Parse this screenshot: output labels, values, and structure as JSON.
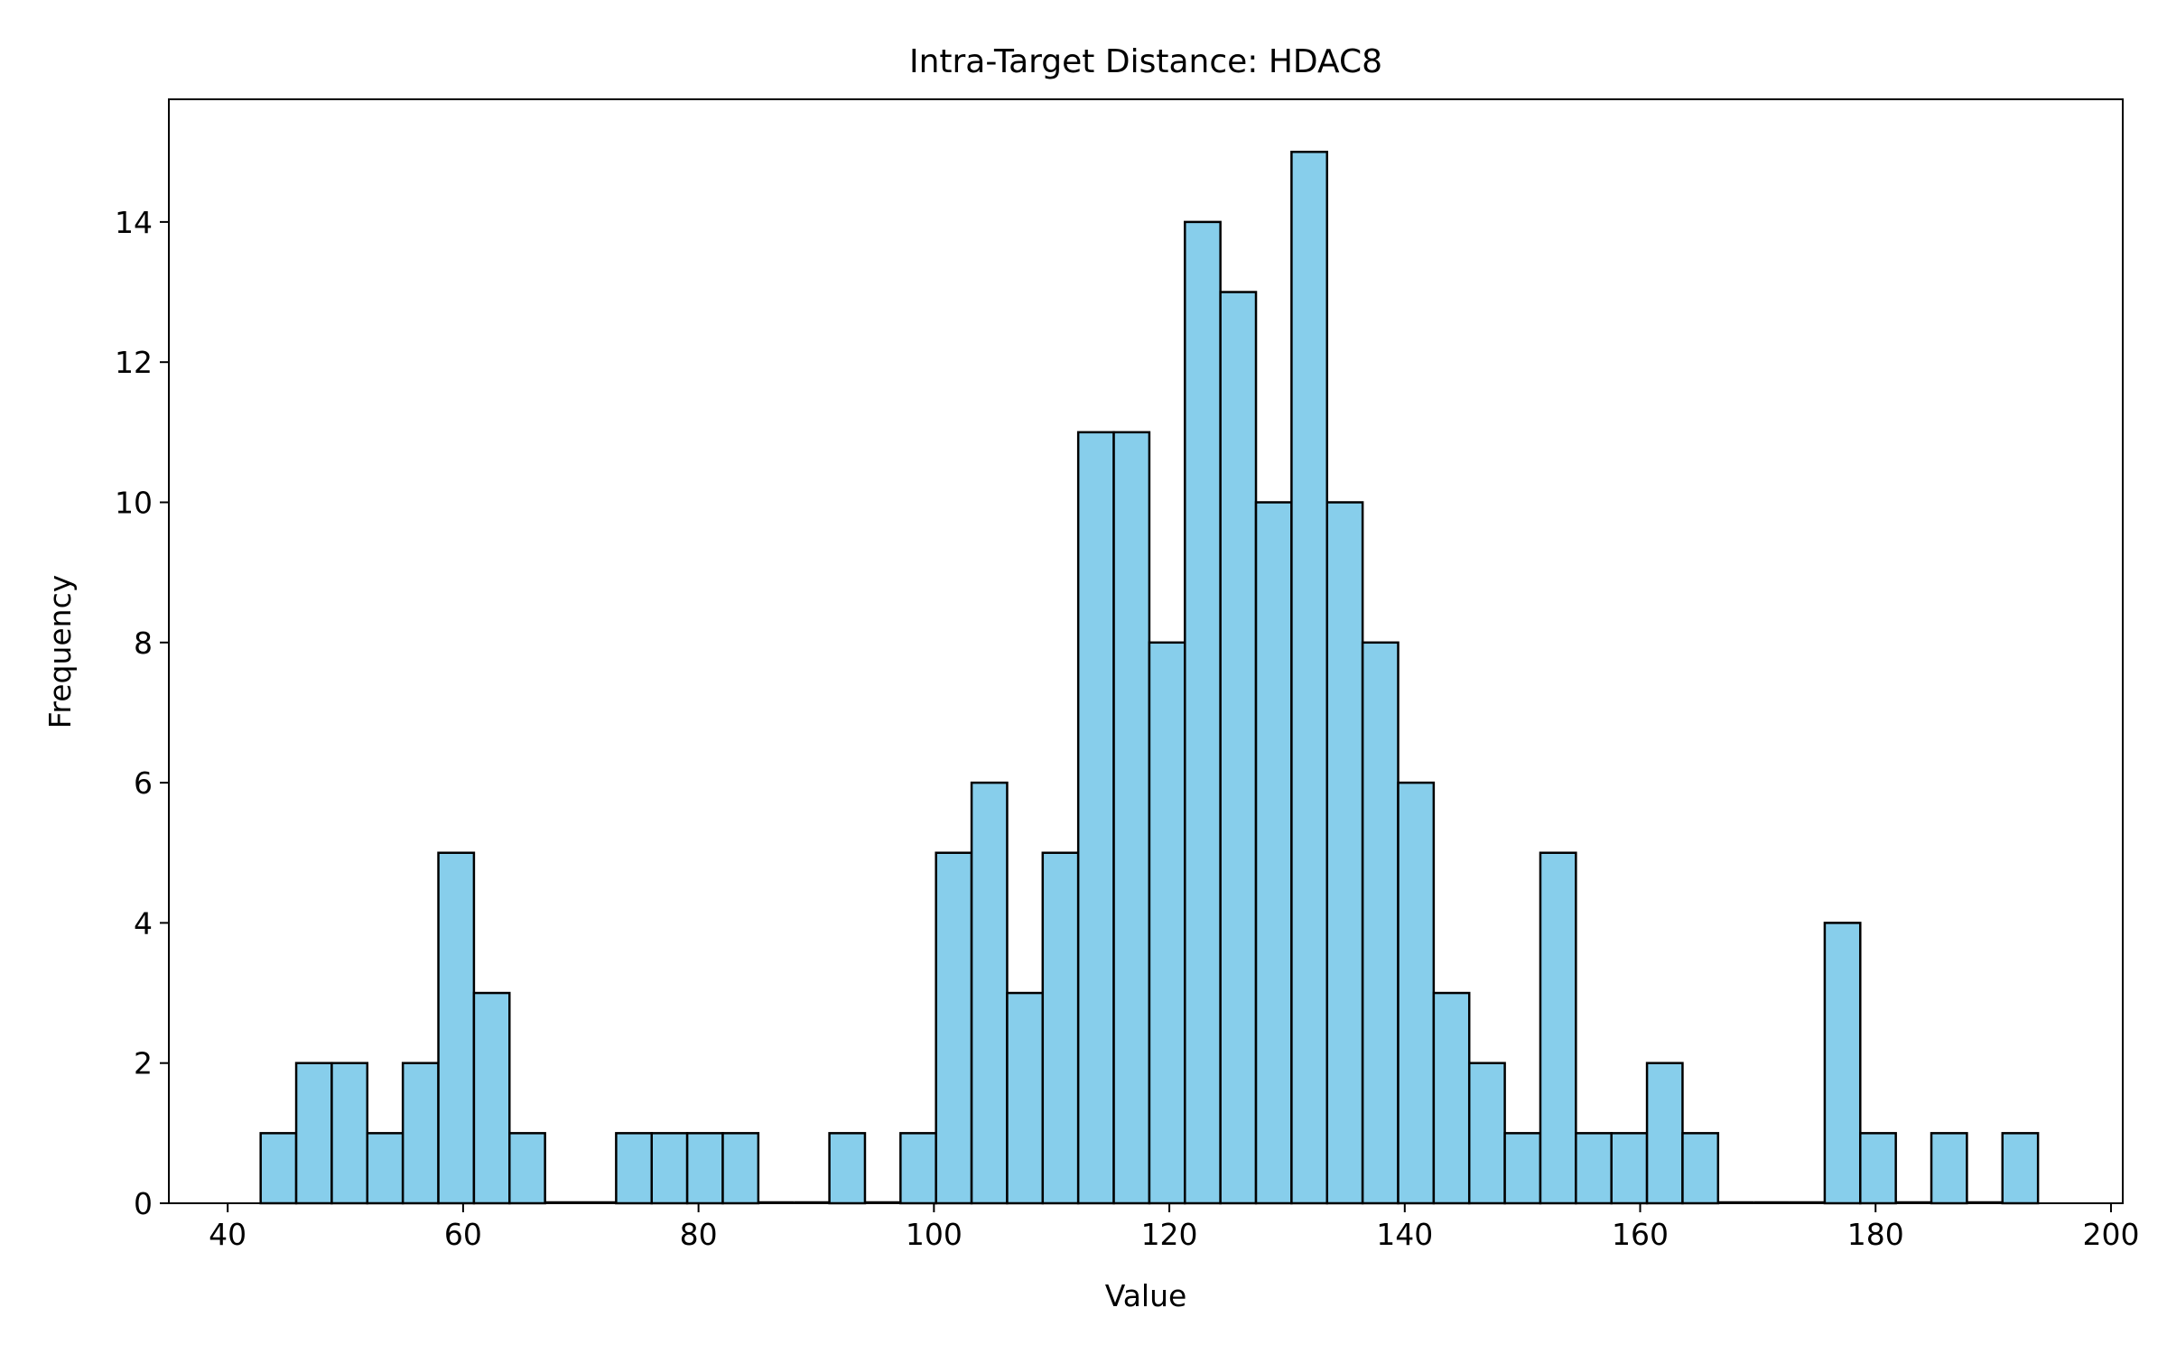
{
  "chart_data": {
    "type": "bar",
    "subtype": "histogram",
    "title": "Intra-Target Distance: HDAC8",
    "xlabel": "Value",
    "ylabel": "Frequency",
    "xlim": [
      35,
      201
    ],
    "ylim": [
      0,
      15.75
    ],
    "xticks": [
      40,
      60,
      80,
      100,
      120,
      140,
      160,
      180,
      200
    ],
    "yticks": [
      0,
      2,
      4,
      6,
      8,
      10,
      12,
      14
    ],
    "bin_start": 42.8,
    "bin_width": 3.02,
    "values": [
      1,
      2,
      2,
      1,
      2,
      5,
      3,
      1,
      0,
      0,
      1,
      1,
      1,
      1,
      0,
      0,
      1,
      0,
      1,
      5,
      6,
      3,
      5,
      11,
      11,
      8,
      14,
      13,
      10,
      15,
      10,
      8,
      6,
      3,
      2,
      1,
      5,
      1,
      1,
      2,
      1,
      0,
      0,
      0,
      4,
      1,
      0,
      1,
      0,
      1
    ],
    "bar_color": "#87CEEB",
    "edge_color": "#000000",
    "grid": false,
    "legend": null
  }
}
